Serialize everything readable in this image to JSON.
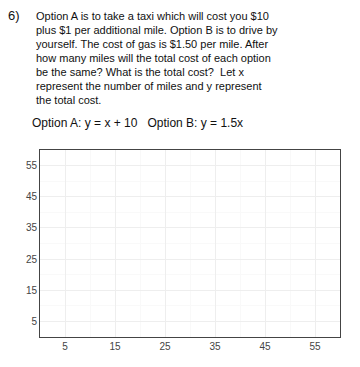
{
  "chart_data": {
    "type": "scatter",
    "annotations": [
      "6)",
      "Option A is to take a taxi which will cost you $10",
      "plus $1 per additional mile. Option B is to drive by",
      "yourself. The cost of gas is $1.50 per mile. After",
      "how many miles will the total cost of each option",
      "be the same? What is the total cost?  Let x",
      "represent the number of miles and y represent",
      "the total cost.",
      "Option A: y = x + 10   Option B: y = 1.5x"
    ],
    "xlim": [
      0,
      60
    ],
    "ylim": [
      0,
      60
    ],
    "xticks": [
      5,
      15,
      25,
      35,
      45,
      55
    ],
    "yticks": [
      5,
      15,
      25,
      35,
      45,
      55
    ],
    "grid": true
  }
}
